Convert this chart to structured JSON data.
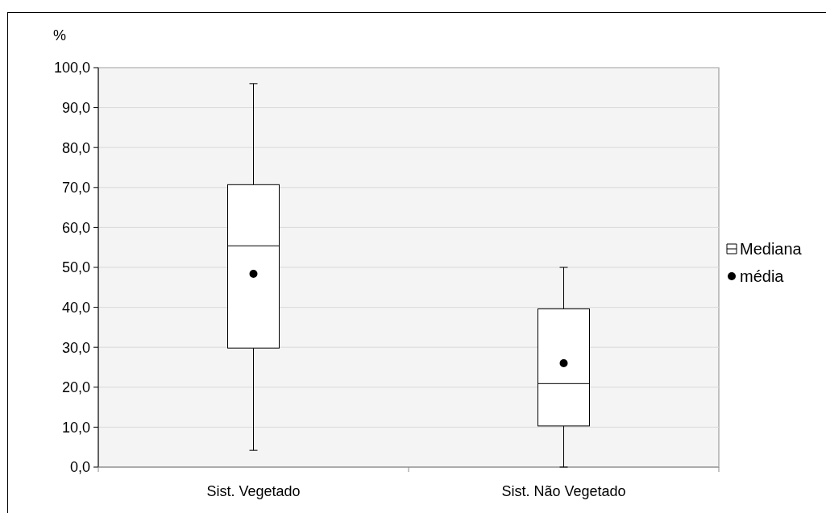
{
  "chart_data": {
    "type": "box",
    "ylabel": "%",
    "categories": [
      "Sist. Vegetado",
      "Sist. Não Vegetado"
    ],
    "ylim": [
      0,
      100
    ],
    "yticks": [
      {
        "value": 0,
        "label": "0,0"
      },
      {
        "value": 10,
        "label": "10,0"
      },
      {
        "value": 20,
        "label": "20,0"
      },
      {
        "value": 30,
        "label": "30,0"
      },
      {
        "value": 40,
        "label": "40,0"
      },
      {
        "value": 50,
        "label": "50,0"
      },
      {
        "value": 60,
        "label": "60,0"
      },
      {
        "value": 70,
        "label": "70,0"
      },
      {
        "value": 80,
        "label": "80,0"
      },
      {
        "value": 90,
        "label": "90,0"
      },
      {
        "value": 100,
        "label": "100,0"
      }
    ],
    "grid": "y",
    "legend": "right",
    "series": [
      {
        "name": "Mediana",
        "color": "#ffffff",
        "boxes": [
          {
            "low": 4.2,
            "q1": 29.8,
            "median": 55.4,
            "q3": 70.7,
            "high": 96.0
          },
          {
            "low": 0,
            "q1": 10.3,
            "median": 20.9,
            "q3": 39.6,
            "high": 50.0
          }
        ]
      },
      {
        "name": "média",
        "type": "scatter",
        "color": "#000000",
        "marker": "circle",
        "values": [
          48.4,
          26.0
        ]
      }
    ]
  }
}
